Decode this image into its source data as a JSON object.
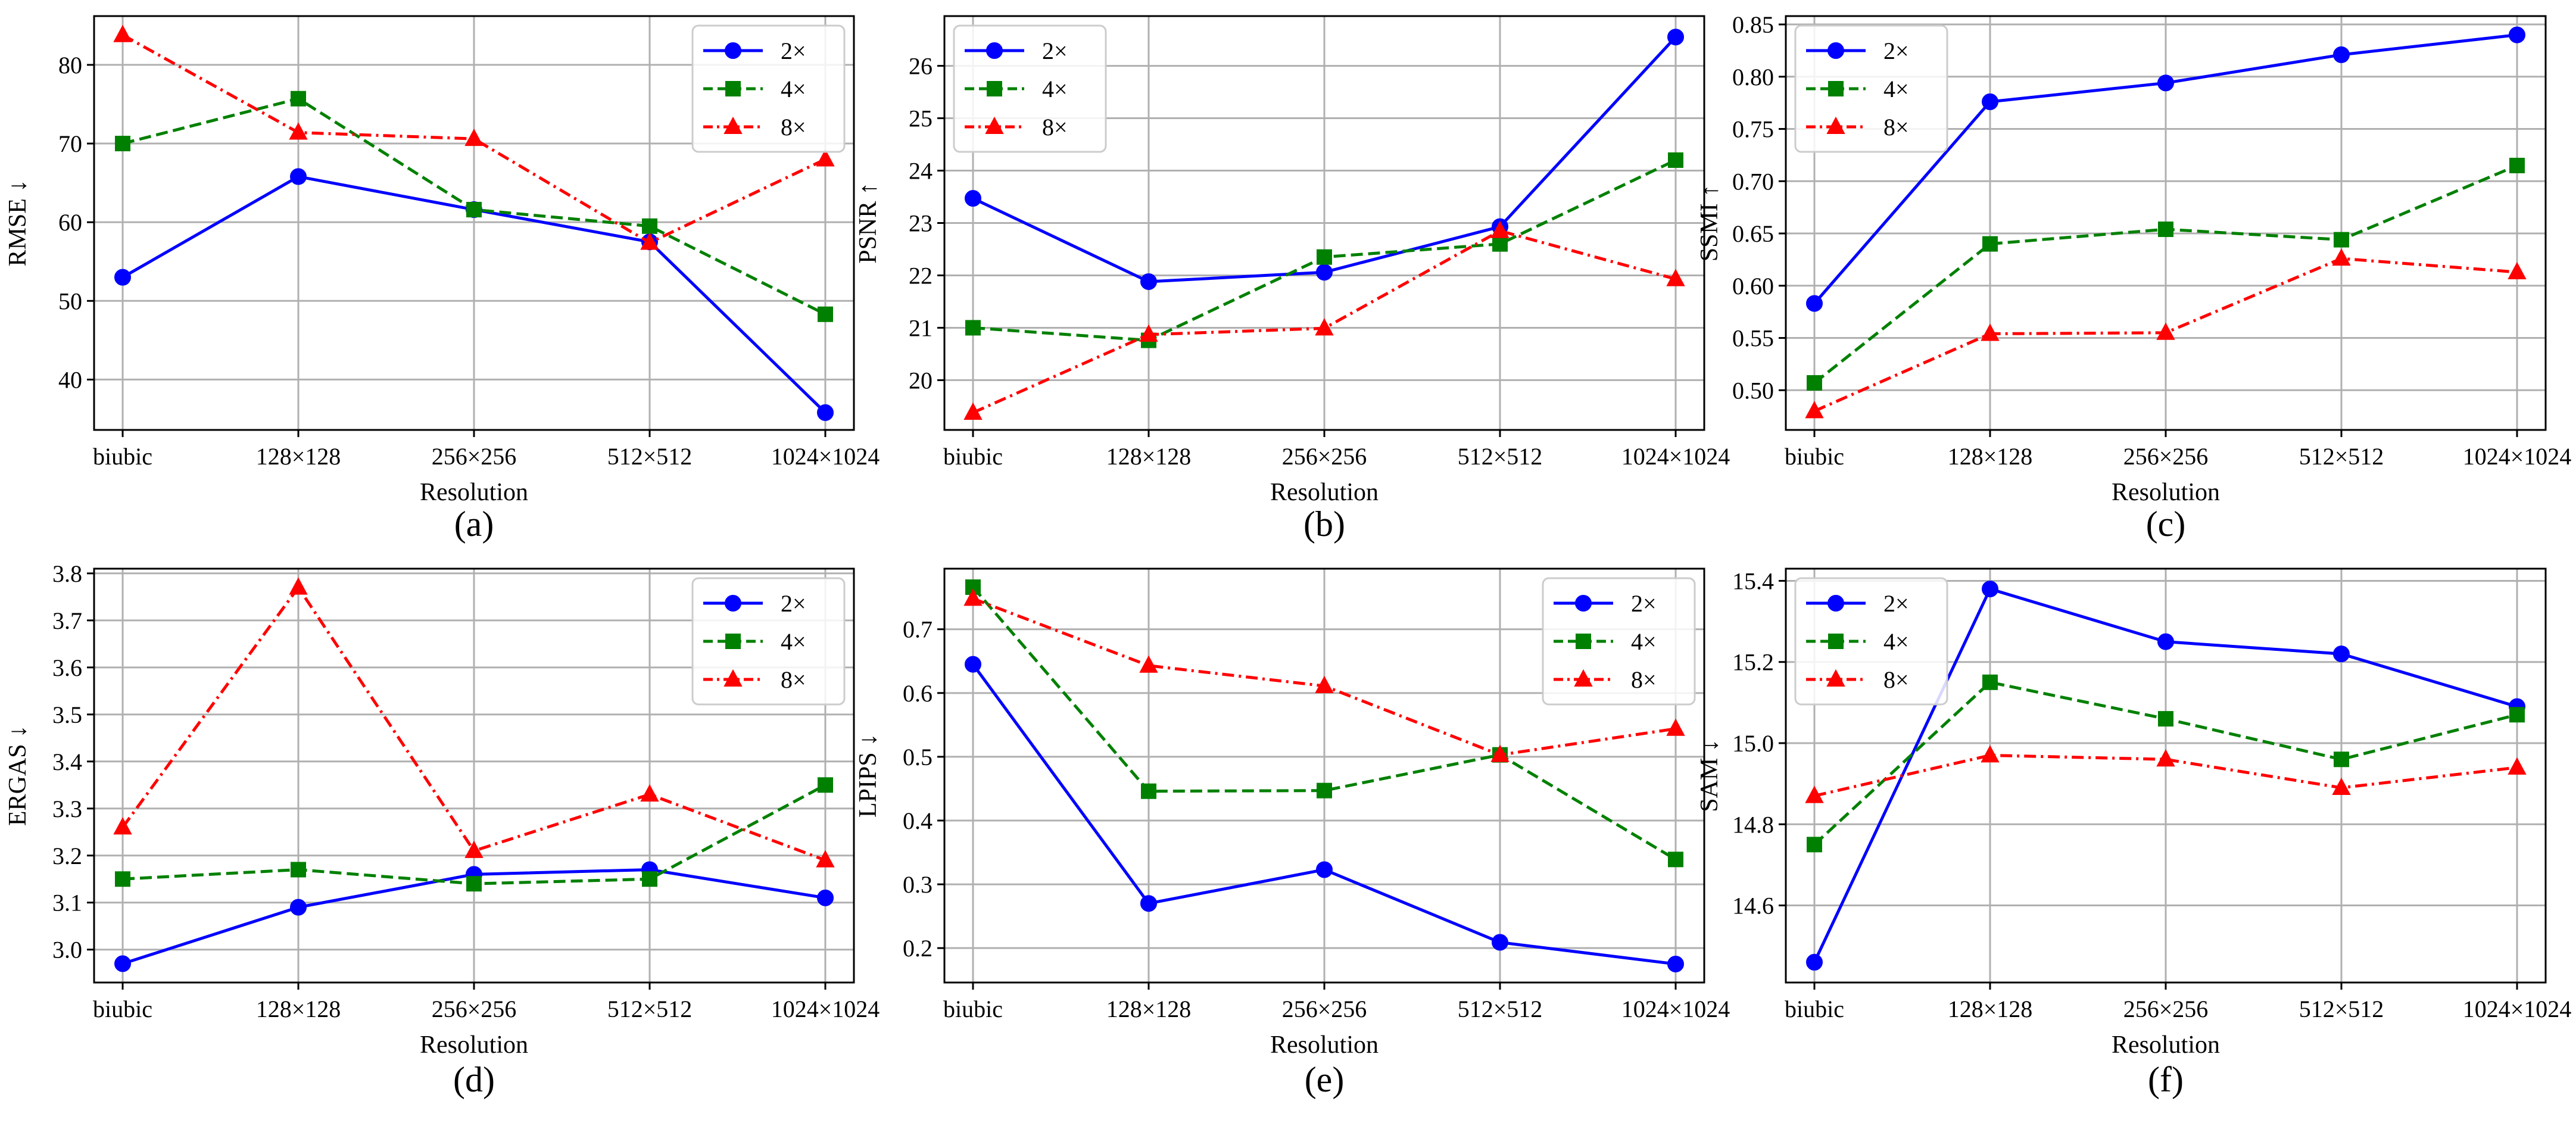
{
  "figure": {
    "panels": [
      "(a)",
      "(b)",
      "(c)",
      "(d)",
      "(e)",
      "(f)"
    ]
  },
  "series_styles": [
    {
      "name": "2×",
      "color": "#0000ff",
      "marker": "circle",
      "dash": "solid"
    },
    {
      "name": "4×",
      "color": "#008000",
      "marker": "square",
      "dash": "dashed"
    },
    {
      "name": "8×",
      "color": "#ff0000",
      "marker": "triangle",
      "dash": "dashdot"
    }
  ],
  "chart_data": [
    {
      "type": "line",
      "panel": "(a)",
      "xlabel": "Resolution",
      "ylabel": "RMSE ↓",
      "categories": [
        "biubic",
        "128×128",
        "256×256",
        "512×512",
        "1024×1024"
      ],
      "ylim": [
        33.6,
        86.2
      ],
      "yticks": [
        40,
        50,
        60,
        70,
        80
      ],
      "ytick_labels": [
        "40",
        "50",
        "60",
        "70",
        "80"
      ],
      "legend": "top-right",
      "grid": true,
      "series": [
        {
          "name": "2×",
          "values": [
            53.0,
            65.8,
            61.6,
            57.5,
            35.8
          ]
        },
        {
          "name": "4×",
          "values": [
            70.0,
            75.7,
            61.6,
            59.5,
            48.3
          ]
        },
        {
          "name": "8×",
          "values": [
            83.8,
            71.4,
            70.6,
            57.4,
            68.0
          ]
        }
      ]
    },
    {
      "type": "line",
      "panel": "(b)",
      "xlabel": "Resolution",
      "ylabel": "PSNR ↑",
      "categories": [
        "biubic",
        "128×128",
        "256×256",
        "512×512",
        "1024×1024"
      ],
      "ylim": [
        19.05,
        26.95
      ],
      "yticks": [
        20,
        21,
        22,
        23,
        24,
        25,
        26
      ],
      "ytick_labels": [
        "20",
        "21",
        "22",
        "23",
        "24",
        "25",
        "26"
      ],
      "legend": "top-left",
      "grid": true,
      "series": [
        {
          "name": "2×",
          "values": [
            23.47,
            21.88,
            22.06,
            22.93,
            26.55
          ]
        },
        {
          "name": "4×",
          "values": [
            21.0,
            20.76,
            22.35,
            22.6,
            24.2
          ]
        },
        {
          "name": "8×",
          "values": [
            19.38,
            20.87,
            20.99,
            22.85,
            21.93
          ]
        }
      ]
    },
    {
      "type": "line",
      "panel": "(c)",
      "xlabel": "Resolution",
      "ylabel": "SSMI ↑",
      "categories": [
        "biubic",
        "128×128",
        "256×256",
        "512×512",
        "1024×1024"
      ],
      "ylim": [
        0.462,
        0.858
      ],
      "yticks": [
        0.5,
        0.55,
        0.6,
        0.65,
        0.7,
        0.75,
        0.8,
        0.85
      ],
      "ytick_labels": [
        "0.50",
        "0.55",
        "0.60",
        "0.65",
        "0.70",
        "0.75",
        "0.80",
        "0.85"
      ],
      "legend": "top-left",
      "grid": true,
      "series": [
        {
          "name": "2×",
          "values": [
            0.583,
            0.776,
            0.794,
            0.821,
            0.84
          ]
        },
        {
          "name": "4×",
          "values": [
            0.507,
            0.64,
            0.654,
            0.644,
            0.715
          ]
        },
        {
          "name": "8×",
          "values": [
            0.48,
            0.554,
            0.555,
            0.626,
            0.613
          ]
        }
      ]
    },
    {
      "type": "line",
      "panel": "(d)",
      "xlabel": "Resolution",
      "ylabel": "ERGAS ↓",
      "categories": [
        "biubic",
        "128×128",
        "256×256",
        "512×512",
        "1024×1024"
      ],
      "ylim": [
        2.93,
        3.81
      ],
      "yticks": [
        3.0,
        3.1,
        3.2,
        3.3,
        3.4,
        3.5,
        3.6,
        3.7,
        3.8
      ],
      "ytick_labels": [
        "3.0",
        "3.1",
        "3.2",
        "3.3",
        "3.4",
        "3.5",
        "3.6",
        "3.7",
        "3.8"
      ],
      "legend": "top-right",
      "grid": true,
      "series": [
        {
          "name": "2×",
          "values": [
            2.97,
            3.09,
            3.16,
            3.17,
            3.11
          ]
        },
        {
          "name": "4×",
          "values": [
            3.15,
            3.17,
            3.14,
            3.15,
            3.35
          ]
        },
        {
          "name": "8×",
          "values": [
            3.26,
            3.77,
            3.21,
            3.33,
            3.19
          ]
        }
      ]
    },
    {
      "type": "line",
      "panel": "(e)",
      "xlabel": "Resolution",
      "ylabel": "LPIPS ↓",
      "categories": [
        "biubic",
        "128×128",
        "256×256",
        "512×512",
        "1024×1024"
      ],
      "ylim": [
        0.146,
        0.795
      ],
      "yticks": [
        0.2,
        0.3,
        0.4,
        0.5,
        0.6,
        0.7
      ],
      "ytick_labels": [
        "0.2",
        "0.3",
        "0.4",
        "0.5",
        "0.6",
        "0.7"
      ],
      "legend": "top-right",
      "grid": true,
      "series": [
        {
          "name": "2×",
          "values": [
            0.645,
            0.27,
            0.323,
            0.209,
            0.175
          ]
        },
        {
          "name": "4×",
          "values": [
            0.766,
            0.446,
            0.447,
            0.503,
            0.339
          ]
        },
        {
          "name": "8×",
          "values": [
            0.748,
            0.643,
            0.611,
            0.503,
            0.544
          ]
        }
      ]
    },
    {
      "type": "line",
      "panel": "(f)",
      "xlabel": "Resolution",
      "ylabel": "SAM ↓",
      "categories": [
        "biubic",
        "128×128",
        "256×256",
        "512×512",
        "1024×1024"
      ],
      "ylim": [
        14.41,
        15.43
      ],
      "yticks": [
        14.6,
        14.8,
        15.0,
        15.2,
        15.4
      ],
      "ytick_labels": [
        "14.6",
        "14.8",
        "15.0",
        "15.2",
        "15.4"
      ],
      "legend": "top-left",
      "grid": true,
      "series": [
        {
          "name": "2×",
          "values": [
            14.46,
            15.38,
            15.25,
            15.22,
            15.09
          ]
        },
        {
          "name": "4×",
          "values": [
            14.75,
            15.15,
            15.06,
            14.96,
            15.07
          ]
        },
        {
          "name": "8×",
          "values": [
            14.87,
            14.97,
            14.96,
            14.89,
            14.94
          ]
        }
      ]
    }
  ]
}
